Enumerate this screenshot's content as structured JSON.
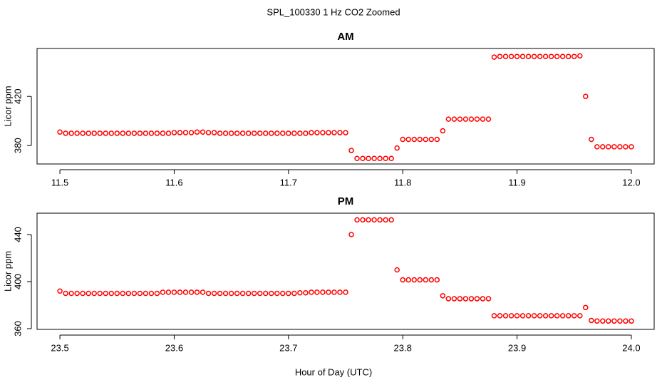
{
  "figure": {
    "title": "SPL_100330  1 Hz CO2 Zoomed",
    "x_label": "Hour of Day (UTC)"
  },
  "chart_data": [
    {
      "type": "scatter",
      "title": "AM",
      "y_label": "Licor ppm",
      "color": "#ff0000",
      "xlim": [
        11.48,
        12.02
      ],
      "ylim": [
        365,
        459
      ],
      "xticks": [
        11.5,
        11.6,
        11.7,
        11.8,
        11.9,
        {
          "value": 12,
          "label": "12.0"
        }
      ],
      "yticks": [
        380,
        420
      ],
      "x": [
        11.5,
        11.505,
        11.51,
        11.515,
        11.52,
        11.525,
        11.53,
        11.535,
        11.54,
        11.545,
        11.55,
        11.555,
        11.56,
        11.565,
        11.57,
        11.575,
        11.58,
        11.585,
        11.59,
        11.595,
        11.6,
        11.605,
        11.61,
        11.615,
        11.62,
        11.625,
        11.63,
        11.635,
        11.64,
        11.645,
        11.65,
        11.655,
        11.66,
        11.665,
        11.67,
        11.675,
        11.68,
        11.685,
        11.69,
        11.695,
        11.7,
        11.705,
        11.71,
        11.715,
        11.72,
        11.725,
        11.73,
        11.735,
        11.74,
        11.745,
        11.75,
        11.755,
        11.76,
        11.765,
        11.77,
        11.775,
        11.78,
        11.785,
        11.79,
        11.795,
        11.8,
        11.805,
        11.81,
        11.815,
        11.82,
        11.825,
        11.83,
        11.835,
        11.84,
        11.845,
        11.85,
        11.855,
        11.86,
        11.865,
        11.87,
        11.875,
        11.88,
        11.885,
        11.89,
        11.895,
        11.9,
        11.905,
        11.91,
        11.915,
        11.92,
        11.925,
        11.93,
        11.935,
        11.94,
        11.945,
        11.95,
        11.955,
        11.96,
        11.965,
        11.97,
        11.975,
        11.98,
        11.985,
        11.99,
        11.995,
        12.0
      ],
      "values": [
        391,
        390,
        390,
        390,
        390,
        390,
        390,
        390,
        390,
        390,
        390,
        390,
        390,
        390,
        390,
        390,
        390,
        390,
        390,
        390,
        390.5,
        390.5,
        390.5,
        390.5,
        391,
        391,
        390.5,
        390.5,
        390,
        390,
        390,
        390,
        390,
        390,
        390,
        390,
        390,
        390,
        390,
        390,
        390,
        390,
        390,
        390,
        390.5,
        390.5,
        390.5,
        390.5,
        390.5,
        390.5,
        390.5,
        376,
        369.5,
        369.5,
        369.5,
        369.5,
        369.5,
        369.5,
        369.5,
        378,
        385,
        385,
        385,
        385,
        385,
        385,
        385,
        392,
        401.5,
        401.5,
        401.5,
        401.5,
        401.5,
        401.5,
        401.5,
        401.5,
        452,
        452.5,
        452.5,
        452.5,
        452.5,
        452.5,
        452.5,
        452.5,
        452.5,
        452.5,
        452.5,
        452.5,
        452.5,
        452.5,
        452.5,
        453,
        420,
        385,
        379,
        379,
        379,
        379,
        379,
        379,
        379
      ]
    },
    {
      "type": "scatter",
      "title": "PM",
      "y_label": "Licor ppm",
      "color": "#ff0000",
      "xlim": [
        23.48,
        24.02
      ],
      "ylim": [
        359.4,
        458.2
      ],
      "xticks": [
        23.5,
        23.6,
        23.7,
        23.8,
        23.9,
        {
          "value": 24,
          "label": "24.0"
        }
      ],
      "yticks": [
        360,
        400,
        440
      ],
      "x": [
        23.5,
        23.505,
        23.51,
        23.515,
        23.52,
        23.525,
        23.53,
        23.535,
        23.54,
        23.545,
        23.55,
        23.555,
        23.56,
        23.565,
        23.57,
        23.575,
        23.58,
        23.585,
        23.59,
        23.595,
        23.6,
        23.605,
        23.61,
        23.615,
        23.62,
        23.625,
        23.63,
        23.635,
        23.64,
        23.645,
        23.65,
        23.655,
        23.66,
        23.665,
        23.67,
        23.675,
        23.68,
        23.685,
        23.69,
        23.695,
        23.7,
        23.705,
        23.71,
        23.715,
        23.72,
        23.725,
        23.73,
        23.735,
        23.74,
        23.745,
        23.75,
        23.755,
        23.76,
        23.765,
        23.77,
        23.775,
        23.78,
        23.785,
        23.79,
        23.795,
        23.8,
        23.805,
        23.81,
        23.815,
        23.82,
        23.825,
        23.83,
        23.835,
        23.84,
        23.845,
        23.85,
        23.855,
        23.86,
        23.865,
        23.87,
        23.875,
        23.88,
        23.885,
        23.89,
        23.895,
        23.9,
        23.905,
        23.91,
        23.915,
        23.92,
        23.925,
        23.93,
        23.935,
        23.94,
        23.945,
        23.95,
        23.955,
        23.96,
        23.965,
        23.97,
        23.975,
        23.98,
        23.985,
        23.99,
        23.995,
        24.0
      ],
      "values": [
        392,
        390,
        390,
        390,
        390,
        390,
        390,
        390,
        390,
        390,
        390,
        390,
        390,
        390,
        390,
        390,
        390,
        390,
        391,
        391,
        391,
        391,
        391,
        391,
        391,
        391,
        390,
        390,
        390,
        390,
        390,
        390,
        390,
        390,
        390,
        390,
        390,
        390,
        390,
        390,
        390,
        390,
        390.5,
        390.5,
        391,
        391,
        391,
        391,
        391,
        391,
        391,
        440,
        452.5,
        452.5,
        452.5,
        452.5,
        452.5,
        452.5,
        452.5,
        410,
        401.5,
        401.5,
        401.5,
        401.5,
        401.5,
        401.5,
        401.5,
        388,
        385.5,
        385.5,
        385.5,
        385.5,
        385.5,
        385.5,
        385.5,
        385.5,
        371,
        371,
        371,
        371,
        371,
        371,
        371,
        371,
        371,
        371,
        371,
        371,
        371,
        371,
        371,
        371,
        378,
        367,
        366.5,
        366.5,
        366.5,
        366.5,
        366.5,
        366.5,
        366.5
      ]
    }
  ]
}
